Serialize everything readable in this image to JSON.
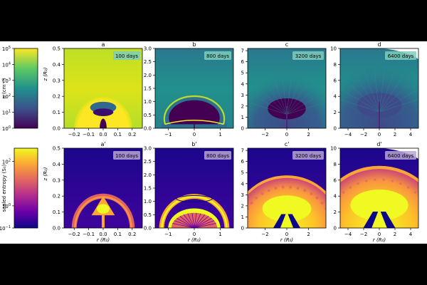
{
  "colorbars": [
    {
      "id": "density",
      "label": "n (cm⁻³)",
      "ticks": [
        {
          "value": 0,
          "base": "10",
          "exp": "0"
        },
        {
          "value": 1,
          "base": "10",
          "exp": "1"
        },
        {
          "value": 2,
          "base": "10",
          "exp": "2"
        },
        {
          "value": 3,
          "base": "10",
          "exp": "3"
        },
        {
          "value": 4,
          "base": "10",
          "exp": "4"
        },
        {
          "value": 5,
          "base": "10",
          "exp": "5"
        }
      ],
      "range": [
        0,
        5
      ],
      "colormap": "viridis",
      "colors": [
        "#440154",
        "#3b528b",
        "#21918c",
        "#5ec962",
        "#fde725"
      ]
    },
    {
      "id": "entropy",
      "label": "scaled entropy (S₀)",
      "ticks": [
        {
          "value": -1,
          "base": "10",
          "exp": "−1"
        },
        {
          "value": 0,
          "base": "10",
          "exp": "0"
        },
        {
          "value": 2,
          "base": "10",
          "exp": "2"
        }
      ],
      "range": [
        -1,
        2.6
      ],
      "colormap": "plasma",
      "colors": [
        "#0d0887",
        "#6a00a8",
        "#b12a90",
        "#e16462",
        "#fca636",
        "#f0f921"
      ]
    }
  ],
  "rows": [
    {
      "colormap_ref": "density",
      "panels": [
        {
          "letter": "a",
          "time": "100 days",
          "xlim": [
            -0.27,
            0.27
          ],
          "ylim": [
            0,
            0.5
          ],
          "xticks": [
            "−0.2",
            "−0.1",
            "0.0",
            "0.1",
            "0.2"
          ],
          "xtick_values": [
            -0.2,
            -0.1,
            0,
            0.1,
            0.2
          ],
          "yticks": [
            "0.0",
            "0.1",
            "0.2",
            "0.3",
            "0.4",
            "0.5"
          ],
          "ytick_values": [
            0,
            0.1,
            0.2,
            0.3,
            0.4,
            0.5
          ],
          "ylabel": "z (R₀)",
          "xlabel": ""
        },
        {
          "letter": "b",
          "time": "800 days",
          "xlim": [
            -1.5,
            1.5
          ],
          "ylim": [
            0,
            3
          ],
          "xticks": [
            "−1",
            "0",
            "1"
          ],
          "xtick_values": [
            -1,
            0,
            1
          ],
          "yticks": [
            "0.0",
            "0.5",
            "1.0",
            "1.5",
            "2.0",
            "2.5",
            "3.0"
          ],
          "ytick_values": [
            0,
            0.5,
            1,
            1.5,
            2,
            2.5,
            3
          ],
          "ylabel": "",
          "xlabel": ""
        },
        {
          "letter": "c",
          "time": "3200 days",
          "xlim": [
            -3.6,
            3.6
          ],
          "ylim": [
            0,
            7.2
          ],
          "xticks": [
            "−2",
            "0",
            "2"
          ],
          "xtick_values": [
            -2,
            0,
            2
          ],
          "yticks": [
            "0",
            "1",
            "2",
            "3",
            "4",
            "5",
            "6",
            "7"
          ],
          "ytick_values": [
            0,
            1,
            2,
            3,
            4,
            5,
            6,
            7
          ],
          "ylabel": "",
          "xlabel": ""
        },
        {
          "letter": "d",
          "time": "6400 days",
          "xlim": [
            -5,
            5
          ],
          "ylim": [
            0,
            10
          ],
          "xticks": [
            "−4",
            "−2",
            "0",
            "2",
            "4"
          ],
          "xtick_values": [
            -4,
            -2,
            0,
            2,
            4
          ],
          "yticks": [
            "0",
            "2",
            "4",
            "6",
            "8",
            "10"
          ],
          "ytick_values": [
            0,
            2,
            4,
            6,
            8,
            10
          ],
          "ylabel": "",
          "xlabel": ""
        }
      ]
    },
    {
      "colormap_ref": "entropy",
      "panels": [
        {
          "letter": "a'",
          "time": "100 days",
          "xlim": [
            -0.27,
            0.27
          ],
          "ylim": [
            0,
            0.5
          ],
          "xticks": [
            "−0.2",
            "−0.1",
            "0.0",
            "0.1",
            "0.2"
          ],
          "xtick_values": [
            -0.2,
            -0.1,
            0,
            0.1,
            0.2
          ],
          "yticks": [
            "0.0",
            "0.1",
            "0.2",
            "0.3",
            "0.4",
            "0.5"
          ],
          "ytick_values": [
            0,
            0.1,
            0.2,
            0.3,
            0.4,
            0.5
          ],
          "ylabel": "z (R₀)",
          "xlabel": "r (R₀)"
        },
        {
          "letter": "b'",
          "time": "800 days",
          "xlim": [
            -1.5,
            1.5
          ],
          "ylim": [
            0,
            3
          ],
          "xticks": [
            "−1",
            "0",
            "1"
          ],
          "xtick_values": [
            -1,
            0,
            1
          ],
          "yticks": [
            "0.0",
            "0.5",
            "1.0",
            "1.5",
            "2.0",
            "2.5",
            "3.0"
          ],
          "ytick_values": [
            0,
            0.5,
            1,
            1.5,
            2,
            2.5,
            3
          ],
          "ylabel": "",
          "xlabel": "r (R₀)"
        },
        {
          "letter": "c'",
          "time": "3200 days",
          "xlim": [
            -3.6,
            3.6
          ],
          "ylim": [
            0,
            7.2
          ],
          "xticks": [
            "−2",
            "0",
            "2"
          ],
          "xtick_values": [
            -2,
            0,
            2
          ],
          "yticks": [
            "0",
            "1",
            "2",
            "3",
            "4",
            "5",
            "6",
            "7"
          ],
          "ytick_values": [
            0,
            1,
            2,
            3,
            4,
            5,
            6,
            7
          ],
          "ylabel": "",
          "xlabel": "r (R₀)"
        },
        {
          "letter": "d'",
          "time": "6400 days",
          "xlim": [
            -5,
            5
          ],
          "ylim": [
            0,
            10
          ],
          "xticks": [
            "−4",
            "−2",
            "0",
            "2",
            "4"
          ],
          "xtick_values": [
            -4,
            -2,
            0,
            2,
            4
          ],
          "yticks": [
            "0",
            "2",
            "4",
            "6",
            "8",
            "10"
          ],
          "ytick_values": [
            0,
            2,
            4,
            6,
            8,
            10
          ],
          "ylabel": "",
          "xlabel": "r (R₀)"
        }
      ]
    }
  ],
  "chart_data": {
    "type": "heatmap",
    "title": "",
    "description_panels": [
      "a",
      "b",
      "c",
      "d",
      "a'",
      "b'",
      "c'",
      "d'"
    ],
    "times_days": [
      100,
      800,
      3200,
      6400
    ],
    "x_range_per_column": [
      [
        -0.27,
        0.27
      ],
      [
        -1.5,
        1.5
      ],
      [
        -3.6,
        3.6
      ],
      [
        -5,
        5
      ]
    ],
    "y_range_per_column": [
      [
        0,
        0.5
      ],
      [
        0,
        3
      ],
      [
        0,
        7.2
      ],
      [
        0,
        10
      ]
    ],
    "bubble_radius_per_column": [
      0.2,
      1.25,
      5.0,
      8.2
    ],
    "rows": [
      "density",
      "entropy"
    ],
    "grid": false
  }
}
